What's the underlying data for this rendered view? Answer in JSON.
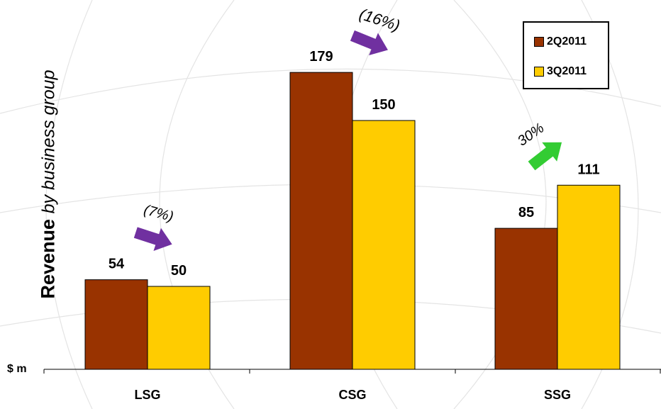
{
  "chart_data": {
    "type": "bar",
    "ylabel_bold": "Revenue",
    "ylabel_italic": "by business group",
    "unit_label": "$ m",
    "categories": [
      "LSG",
      "CSG",
      "SSG"
    ],
    "series": [
      {
        "name": "2Q2011",
        "values": [
          54,
          179,
          85
        ],
        "color": "#993300"
      },
      {
        "name": "3Q2011",
        "values": [
          50,
          150,
          111
        ],
        "color": "#FFCC00"
      }
    ],
    "data_labels": [
      [
        "54",
        "179",
        "85"
      ],
      [
        "50",
        "150",
        "111"
      ]
    ],
    "ylim": [
      0,
      190
    ],
    "grid": false,
    "legend_position": "top-right",
    "annotations": [
      {
        "category": "LSG",
        "text": "(7%)",
        "arrow_color": "#7030A0",
        "direction": "down"
      },
      {
        "category": "CSG",
        "text": "(16%)",
        "arrow_color": "#7030A0",
        "direction": "down"
      },
      {
        "category": "SSG",
        "text": "30%",
        "arrow_color": "#33CC33",
        "direction": "up"
      }
    ]
  }
}
